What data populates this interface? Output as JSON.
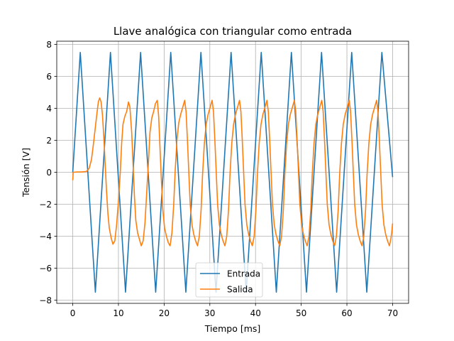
{
  "chart_data": {
    "type": "line",
    "title": "Llave analógica con triangular como entrada",
    "xlabel": "Tiempo [ms]",
    "ylabel": "Tensión [V]",
    "xlim": [
      -3.5,
      73.5
    ],
    "ylim": [
      -8.2,
      8.2
    ],
    "xticks": [
      0,
      10,
      20,
      30,
      40,
      50,
      60,
      70
    ],
    "yticks": [
      -8,
      -6,
      -4,
      -2,
      0,
      2,
      4,
      6,
      8
    ],
    "grid": true,
    "legend_position": "lower-center",
    "series": [
      {
        "name": "Entrada",
        "color": "#1f77b4",
        "points": [
          [
            0,
            0
          ],
          [
            1.65,
            7.5
          ],
          [
            4.95,
            -7.5
          ],
          [
            8.25,
            7.5
          ],
          [
            11.55,
            -7.5
          ],
          [
            14.85,
            7.5
          ],
          [
            18.15,
            -7.5
          ],
          [
            21.45,
            7.5
          ],
          [
            24.75,
            -7.5
          ],
          [
            28.05,
            7.5
          ],
          [
            31.35,
            -7.5
          ],
          [
            34.65,
            7.5
          ],
          [
            37.95,
            -7.5
          ],
          [
            41.25,
            7.5
          ],
          [
            44.55,
            -7.5
          ],
          [
            47.85,
            7.5
          ],
          [
            51.15,
            -7.5
          ],
          [
            54.45,
            7.5
          ],
          [
            57.75,
            -7.5
          ],
          [
            61.05,
            7.5
          ],
          [
            64.35,
            -7.5
          ],
          [
            67.65,
            7.5
          ],
          [
            70,
            -0.3
          ]
        ]
      },
      {
        "name": "Salida",
        "color": "#ff7f0e",
        "points": [
          [
            0,
            -0.5
          ],
          [
            0.1,
            0
          ],
          [
            1,
            0.02
          ],
          [
            2,
            0.02
          ],
          [
            3,
            0.05
          ],
          [
            3.6,
            0.25
          ],
          [
            4.1,
            0.8
          ],
          [
            4.5,
            1.7
          ],
          [
            4.9,
            2.7
          ],
          [
            5.3,
            3.7
          ],
          [
            5.6,
            4.4
          ],
          [
            5.9,
            4.65
          ],
          [
            6.2,
            4.4
          ],
          [
            6.5,
            3.6
          ],
          [
            6.8,
            2.2
          ],
          [
            7.1,
            0.5
          ],
          [
            7.4,
            -1.2
          ],
          [
            7.7,
            -2.6
          ],
          [
            8,
            -3.5
          ],
          [
            8.4,
            -4.1
          ],
          [
            8.8,
            -4.5
          ],
          [
            9.2,
            -4.3
          ],
          [
            9.6,
            -3.3
          ],
          [
            10,
            -1.8
          ],
          [
            10.4,
            0
          ],
          [
            10.7,
            1.8
          ],
          [
            11,
            3.0
          ],
          [
            11.4,
            3.5
          ],
          [
            11.8,
            3.8
          ],
          [
            12.2,
            4.4
          ],
          [
            12.5,
            4.1
          ],
          [
            12.9,
            2.5
          ],
          [
            13.2,
            0.5
          ],
          [
            13.5,
            -1.5
          ],
          [
            13.8,
            -3.0
          ],
          [
            14.2,
            -3.8
          ],
          [
            14.6,
            -4.2
          ],
          [
            15,
            -4.6
          ],
          [
            15.4,
            -4.3
          ],
          [
            15.8,
            -3.2
          ],
          [
            16.2,
            -1.2
          ],
          [
            16.6,
            0.8
          ],
          [
            16.9,
            2.5
          ],
          [
            17.3,
            3.4
          ],
          [
            17.7,
            3.8
          ],
          [
            18.1,
            4.3
          ],
          [
            18.5,
            4.5
          ],
          [
            18.8,
            3.5
          ],
          [
            19.1,
            1.5
          ],
          [
            19.4,
            -0.5
          ],
          [
            19.7,
            -2.3
          ],
          [
            20.1,
            -3.5
          ],
          [
            20.5,
            -4.0
          ],
          [
            20.9,
            -4.4
          ],
          [
            21.3,
            -4.6
          ],
          [
            21.7,
            -3.8
          ],
          [
            22.1,
            -2.0
          ],
          [
            22.4,
            0
          ],
          [
            22.8,
            2.0
          ],
          [
            23.2,
            3.1
          ],
          [
            23.6,
            3.6
          ],
          [
            24,
            4.0
          ],
          [
            24.5,
            4.5
          ],
          [
            24.8,
            3.8
          ],
          [
            25.1,
            2.0
          ],
          [
            25.4,
            0
          ],
          [
            25.7,
            -2.0
          ],
          [
            26.1,
            -3.3
          ],
          [
            26.5,
            -3.9
          ],
          [
            26.9,
            -4.3
          ],
          [
            27.3,
            -4.6
          ],
          [
            27.7,
            -4.0
          ],
          [
            28.1,
            -2.3
          ],
          [
            28.4,
            -0.2
          ],
          [
            28.8,
            1.8
          ],
          [
            29.2,
            3.0
          ],
          [
            29.6,
            3.6
          ],
          [
            30,
            4.0
          ],
          [
            30.5,
            4.5
          ],
          [
            30.8,
            3.8
          ],
          [
            31.1,
            2.0
          ],
          [
            31.4,
            0
          ],
          [
            31.7,
            -2.0
          ],
          [
            32.1,
            -3.3
          ],
          [
            32.5,
            -3.9
          ],
          [
            32.9,
            -4.3
          ],
          [
            33.3,
            -4.6
          ],
          [
            33.7,
            -4.0
          ],
          [
            34.1,
            -2.3
          ],
          [
            34.4,
            -0.2
          ],
          [
            34.8,
            1.8
          ],
          [
            35.2,
            3.0
          ],
          [
            35.6,
            3.6
          ],
          [
            36,
            4.0
          ],
          [
            36.5,
            4.5
          ],
          [
            36.8,
            3.8
          ],
          [
            37.1,
            2.0
          ],
          [
            37.4,
            0
          ],
          [
            37.7,
            -2.0
          ],
          [
            38.1,
            -3.3
          ],
          [
            38.5,
            -3.9
          ],
          [
            38.9,
            -4.3
          ],
          [
            39.3,
            -4.6
          ],
          [
            39.7,
            -4.0
          ],
          [
            40.1,
            -2.3
          ],
          [
            40.4,
            -0.2
          ],
          [
            40.8,
            1.8
          ],
          [
            41.2,
            3.0
          ],
          [
            41.6,
            3.6
          ],
          [
            42,
            4.0
          ],
          [
            42.5,
            4.5
          ],
          [
            42.8,
            3.8
          ],
          [
            43.1,
            2.0
          ],
          [
            43.4,
            0
          ],
          [
            43.7,
            -2.0
          ],
          [
            44.1,
            -3.3
          ],
          [
            44.5,
            -3.9
          ],
          [
            44.9,
            -4.3
          ],
          [
            45.3,
            -4.6
          ],
          [
            45.7,
            -4.0
          ],
          [
            46.1,
            -2.3
          ],
          [
            46.4,
            -0.2
          ],
          [
            46.8,
            1.8
          ],
          [
            47.2,
            3.0
          ],
          [
            47.6,
            3.6
          ],
          [
            48,
            4.0
          ],
          [
            48.5,
            4.5
          ],
          [
            48.8,
            3.8
          ],
          [
            49.1,
            2.0
          ],
          [
            49.4,
            0
          ],
          [
            49.7,
            -2.0
          ],
          [
            50.1,
            -3.3
          ],
          [
            50.5,
            -3.9
          ],
          [
            50.9,
            -4.3
          ],
          [
            51.3,
            -4.6
          ],
          [
            51.7,
            -4.0
          ],
          [
            52.1,
            -2.3
          ],
          [
            52.4,
            -0.2
          ],
          [
            52.8,
            1.8
          ],
          [
            53.2,
            3.0
          ],
          [
            53.6,
            3.6
          ],
          [
            54,
            4.0
          ],
          [
            54.5,
            4.5
          ],
          [
            54.8,
            3.8
          ],
          [
            55.1,
            2.0
          ],
          [
            55.4,
            0
          ],
          [
            55.7,
            -2.0
          ],
          [
            56.1,
            -3.3
          ],
          [
            56.5,
            -3.9
          ],
          [
            56.9,
            -4.3
          ],
          [
            57.3,
            -4.6
          ],
          [
            57.7,
            -4.0
          ],
          [
            58.1,
            -2.3
          ],
          [
            58.4,
            -0.2
          ],
          [
            58.8,
            1.8
          ],
          [
            59.2,
            3.0
          ],
          [
            59.6,
            3.6
          ],
          [
            60,
            4.0
          ],
          [
            60.5,
            4.5
          ],
          [
            60.8,
            3.8
          ],
          [
            61.1,
            2.0
          ],
          [
            61.4,
            0
          ],
          [
            61.7,
            -2.0
          ],
          [
            62.1,
            -3.3
          ],
          [
            62.5,
            -3.9
          ],
          [
            62.9,
            -4.3
          ],
          [
            63.3,
            -4.6
          ],
          [
            63.7,
            -4.0
          ],
          [
            64.1,
            -2.3
          ],
          [
            64.4,
            -0.2
          ],
          [
            64.8,
            1.8
          ],
          [
            65.2,
            3.0
          ],
          [
            65.6,
            3.6
          ],
          [
            66,
            4.0
          ],
          [
            66.5,
            4.5
          ],
          [
            66.8,
            3.8
          ],
          [
            67.1,
            2.0
          ],
          [
            67.4,
            0
          ],
          [
            67.7,
            -2.0
          ],
          [
            68.1,
            -3.3
          ],
          [
            68.5,
            -3.9
          ],
          [
            68.9,
            -4.3
          ],
          [
            69.3,
            -4.6
          ],
          [
            69.6,
            -4.2
          ],
          [
            69.8,
            -3.8
          ],
          [
            70,
            -3.2
          ]
        ]
      }
    ]
  }
}
